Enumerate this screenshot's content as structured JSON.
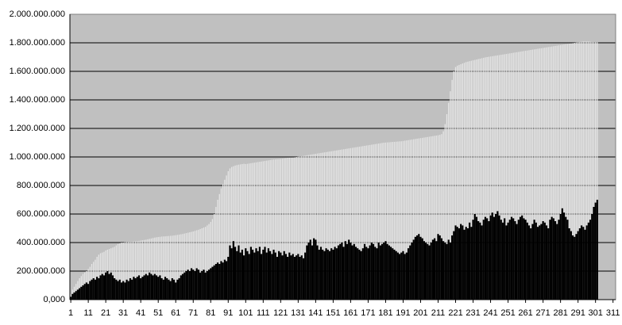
{
  "chart_data": {
    "type": "bar",
    "x": [
      1,
      2,
      3,
      4,
      5,
      6,
      7,
      8,
      9,
      10,
      11,
      12,
      13,
      14,
      15,
      16,
      17,
      18,
      19,
      20,
      21,
      22,
      23,
      24,
      25,
      26,
      27,
      28,
      29,
      30,
      31,
      32,
      33,
      34,
      35,
      36,
      37,
      38,
      39,
      40,
      41,
      42,
      43,
      44,
      45,
      46,
      47,
      48,
      49,
      50,
      51,
      52,
      53,
      54,
      55,
      56,
      57,
      58,
      59,
      60,
      61,
      62,
      63,
      64,
      65,
      66,
      67,
      68,
      69,
      70,
      71,
      72,
      73,
      74,
      75,
      76,
      77,
      78,
      79,
      80,
      81,
      82,
      83,
      84,
      85,
      86,
      87,
      88,
      89,
      90,
      91,
      92,
      93,
      94,
      95,
      96,
      97,
      98,
      99,
      100,
      101,
      102,
      103,
      104,
      105,
      106,
      107,
      108,
      109,
      110,
      111,
      112,
      113,
      114,
      115,
      116,
      117,
      118,
      119,
      120,
      121,
      122,
      123,
      124,
      125,
      126,
      127,
      128,
      129,
      130,
      131,
      132,
      133,
      134,
      135,
      136,
      137,
      138,
      139,
      140,
      141,
      142,
      143,
      144,
      145,
      146,
      147,
      148,
      149,
      150,
      151,
      152,
      153,
      154,
      155,
      156,
      157,
      158,
      159,
      160,
      161,
      162,
      163,
      164,
      165,
      166,
      167,
      168,
      169,
      170,
      171,
      172,
      173,
      174,
      175,
      176,
      177,
      178,
      179,
      180,
      181,
      182,
      183,
      184,
      185,
      186,
      187,
      188,
      189,
      190,
      191,
      192,
      193,
      194,
      195,
      196,
      197,
      198,
      199,
      200,
      201,
      202,
      203,
      204,
      205,
      206,
      207,
      208,
      209,
      210,
      211,
      212,
      213,
      214,
      215,
      216,
      217,
      218,
      219,
      220,
      221,
      222,
      223,
      224,
      225,
      226,
      227,
      228,
      229,
      230,
      231,
      232,
      233,
      234,
      235,
      236,
      237,
      238,
      239,
      240,
      241,
      242,
      243,
      244,
      245,
      246,
      247,
      248,
      249,
      250,
      251,
      252,
      253,
      254,
      255,
      256,
      257,
      258,
      259,
      260,
      261,
      262,
      263,
      264,
      265,
      266,
      267,
      268,
      269,
      270,
      271,
      272,
      273,
      274,
      275,
      276,
      277,
      278,
      279,
      280,
      281,
      282,
      283,
      284,
      285,
      286,
      287,
      288,
      289,
      290,
      291,
      292,
      293,
      294,
      295,
      296,
      297,
      298,
      299,
      300,
      301,
      302
    ],
    "series": [
      {
        "color": "#e6e6e6",
        "values": [
          40000000,
          70000000,
          90000000,
          110000000,
          130000000,
          150000000,
          165000000,
          180000000,
          190000000,
          200000000,
          215000000,
          230000000,
          250000000,
          265000000,
          280000000,
          300000000,
          315000000,
          325000000,
          330000000,
          335000000,
          345000000,
          350000000,
          355000000,
          360000000,
          365000000,
          370000000,
          380000000,
          390000000,
          395000000,
          400000000,
          400000000,
          402000000,
          404000000,
          405000000,
          406000000,
          407000000,
          408000000,
          409000000,
          410000000,
          412000000,
          414000000,
          416000000,
          418000000,
          420000000,
          423000000,
          426000000,
          429000000,
          432000000,
          435000000,
          437000000,
          439000000,
          440000000,
          442000000,
          443000000,
          444000000,
          445000000,
          446000000,
          447000000,
          448000000,
          450000000,
          452000000,
          454000000,
          456000000,
          458000000,
          460000000,
          463000000,
          466000000,
          469000000,
          472000000,
          475000000,
          478000000,
          482000000,
          486000000,
          490000000,
          495000000,
          500000000,
          505000000,
          510000000,
          520000000,
          530000000,
          545000000,
          565000000,
          600000000,
          650000000,
          700000000,
          740000000,
          780000000,
          810000000,
          840000000,
          870000000,
          900000000,
          920000000,
          930000000,
          935000000,
          940000000,
          943000000,
          946000000,
          948000000,
          950000000,
          952000000,
          950000000,
          952000000,
          954000000,
          956000000,
          958000000,
          960000000,
          962000000,
          964000000,
          966000000,
          968000000,
          970000000,
          972000000,
          974000000,
          976000000,
          978000000,
          980000000,
          982000000,
          983000000,
          984000000,
          985000000,
          986000000,
          988000000,
          990000000,
          992000000,
          994000000,
          995000000,
          996000000,
          997000000,
          998000000,
          1000000000,
          1002000000,
          1004000000,
          1006000000,
          1008000000,
          1010000000,
          1012000000,
          1014000000,
          1016000000,
          1018000000,
          1020000000,
          1022000000,
          1024000000,
          1026000000,
          1028000000,
          1030000000,
          1032000000,
          1034000000,
          1036000000,
          1038000000,
          1040000000,
          1042000000,
          1044000000,
          1046000000,
          1048000000,
          1050000000,
          1052000000,
          1054000000,
          1056000000,
          1058000000,
          1060000000,
          1062000000,
          1064000000,
          1066000000,
          1068000000,
          1070000000,
          1072000000,
          1074000000,
          1076000000,
          1078000000,
          1080000000,
          1082000000,
          1084000000,
          1086000000,
          1088000000,
          1090000000,
          1092000000,
          1094000000,
          1096000000,
          1098000000,
          1100000000,
          1101000000,
          1102000000,
          1103000000,
          1104000000,
          1105000000,
          1106000000,
          1107000000,
          1108000000,
          1109000000,
          1110000000,
          1112000000,
          1114000000,
          1116000000,
          1118000000,
          1120000000,
          1122000000,
          1124000000,
          1126000000,
          1128000000,
          1130000000,
          1132000000,
          1134000000,
          1136000000,
          1138000000,
          1140000000,
          1142000000,
          1144000000,
          1146000000,
          1148000000,
          1150000000,
          1152000000,
          1155000000,
          1160000000,
          1180000000,
          1230000000,
          1300000000,
          1380000000,
          1460000000,
          1540000000,
          1600000000,
          1630000000,
          1640000000,
          1645000000,
          1650000000,
          1655000000,
          1660000000,
          1665000000,
          1668000000,
          1671000000,
          1674000000,
          1677000000,
          1680000000,
          1683000000,
          1686000000,
          1689000000,
          1692000000,
          1695000000,
          1698000000,
          1700000000,
          1702000000,
          1704000000,
          1706000000,
          1708000000,
          1710000000,
          1712000000,
          1714000000,
          1716000000,
          1718000000,
          1720000000,
          1722000000,
          1724000000,
          1726000000,
          1728000000,
          1730000000,
          1732000000,
          1734000000,
          1736000000,
          1738000000,
          1740000000,
          1742000000,
          1744000000,
          1746000000,
          1748000000,
          1750000000,
          1752000000,
          1754000000,
          1756000000,
          1758000000,
          1760000000,
          1762000000,
          1764000000,
          1766000000,
          1768000000,
          1770000000,
          1772000000,
          1774000000,
          1776000000,
          1778000000,
          1780000000,
          1782000000,
          1784000000,
          1786000000,
          1788000000,
          1790000000,
          1792000000,
          1794000000,
          1796000000,
          1798000000,
          1800000000,
          1802000000,
          1804000000,
          1806000000,
          1808000000,
          1810000000,
          1810000000,
          1810000000,
          1810000000,
          1808000000,
          1806000000,
          1805000000,
          1804000000,
          1803000000
        ]
      },
      {
        "color": "#000000",
        "values": [
          20000000,
          40000000,
          50000000,
          60000000,
          70000000,
          80000000,
          90000000,
          100000000,
          110000000,
          120000000,
          110000000,
          130000000,
          140000000,
          150000000,
          140000000,
          160000000,
          150000000,
          170000000,
          180000000,
          170000000,
          190000000,
          200000000,
          180000000,
          190000000,
          170000000,
          150000000,
          140000000,
          130000000,
          140000000,
          120000000,
          130000000,
          120000000,
          140000000,
          130000000,
          150000000,
          140000000,
          160000000,
          150000000,
          160000000,
          170000000,
          150000000,
          160000000,
          170000000,
          180000000,
          170000000,
          190000000,
          180000000,
          170000000,
          180000000,
          170000000,
          160000000,
          170000000,
          150000000,
          140000000,
          160000000,
          150000000,
          140000000,
          130000000,
          150000000,
          140000000,
          120000000,
          140000000,
          150000000,
          170000000,
          180000000,
          190000000,
          200000000,
          210000000,
          200000000,
          220000000,
          210000000,
          200000000,
          220000000,
          210000000,
          190000000,
          200000000,
          210000000,
          190000000,
          200000000,
          210000000,
          220000000,
          230000000,
          240000000,
          250000000,
          260000000,
          250000000,
          270000000,
          260000000,
          280000000,
          270000000,
          300000000,
          380000000,
          360000000,
          410000000,
          370000000,
          340000000,
          380000000,
          330000000,
          350000000,
          310000000,
          360000000,
          340000000,
          320000000,
          370000000,
          350000000,
          330000000,
          360000000,
          340000000,
          370000000,
          320000000,
          350000000,
          370000000,
          330000000,
          360000000,
          340000000,
          320000000,
          350000000,
          330000000,
          300000000,
          340000000,
          330000000,
          310000000,
          340000000,
          320000000,
          300000000,
          330000000,
          310000000,
          320000000,
          300000000,
          310000000,
          320000000,
          300000000,
          310000000,
          290000000,
          330000000,
          380000000,
          400000000,
          420000000,
          380000000,
          430000000,
          420000000,
          380000000,
          350000000,
          370000000,
          350000000,
          340000000,
          360000000,
          350000000,
          340000000,
          360000000,
          350000000,
          370000000,
          360000000,
          380000000,
          390000000,
          400000000,
          370000000,
          410000000,
          390000000,
          420000000,
          400000000,
          380000000,
          390000000,
          370000000,
          360000000,
          350000000,
          340000000,
          360000000,
          390000000,
          370000000,
          360000000,
          380000000,
          400000000,
          390000000,
          370000000,
          360000000,
          400000000,
          380000000,
          390000000,
          400000000,
          410000000,
          390000000,
          380000000,
          370000000,
          360000000,
          350000000,
          340000000,
          330000000,
          320000000,
          330000000,
          340000000,
          320000000,
          330000000,
          360000000,
          380000000,
          400000000,
          420000000,
          440000000,
          450000000,
          460000000,
          440000000,
          430000000,
          410000000,
          400000000,
          390000000,
          380000000,
          400000000,
          420000000,
          430000000,
          410000000,
          460000000,
          450000000,
          430000000,
          410000000,
          400000000,
          390000000,
          420000000,
          400000000,
          450000000,
          480000000,
          520000000,
          510000000,
          500000000,
          530000000,
          520000000,
          490000000,
          510000000,
          500000000,
          540000000,
          510000000,
          560000000,
          600000000,
          580000000,
          550000000,
          540000000,
          520000000,
          560000000,
          580000000,
          570000000,
          550000000,
          590000000,
          610000000,
          580000000,
          600000000,
          620000000,
          590000000,
          560000000,
          540000000,
          570000000,
          520000000,
          540000000,
          560000000,
          580000000,
          570000000,
          550000000,
          530000000,
          560000000,
          580000000,
          590000000,
          570000000,
          560000000,
          540000000,
          520000000,
          500000000,
          530000000,
          560000000,
          540000000,
          510000000,
          520000000,
          530000000,
          550000000,
          540000000,
          520000000,
          500000000,
          560000000,
          580000000,
          570000000,
          550000000,
          530000000,
          560000000,
          600000000,
          640000000,
          610000000,
          580000000,
          560000000,
          500000000,
          480000000,
          450000000,
          440000000,
          460000000,
          480000000,
          500000000,
          520000000,
          510000000,
          490000000,
          520000000,
          540000000,
          560000000,
          600000000,
          650000000,
          680000000,
          700000000
        ]
      }
    ],
    "xlim": [
      0.5,
      312.5
    ],
    "xticks": [
      1,
      11,
      21,
      31,
      41,
      51,
      61,
      71,
      81,
      91,
      101,
      111,
      121,
      131,
      141,
      151,
      161,
      171,
      181,
      191,
      201,
      211,
      221,
      231,
      241,
      251,
      261,
      271,
      281,
      291,
      301,
      311
    ],
    "ylim": [
      0,
      2000000000
    ],
    "yticks": [
      {
        "value": 0,
        "label": "0,000"
      },
      {
        "value": 200000000,
        "label": "200.000.000"
      },
      {
        "value": 400000000,
        "label": "400.000.000"
      },
      {
        "value": 600000000,
        "label": "600.000.000"
      },
      {
        "value": 800000000,
        "label": "800.000.000"
      },
      {
        "value": 1000000000,
        "label": "1.000.000.000"
      },
      {
        "value": 1200000000,
        "label": "1.200.000.000"
      },
      {
        "value": 1400000000,
        "label": "1.400.000.000"
      },
      {
        "value": 1600000000,
        "label": "1.600.000.000"
      },
      {
        "value": 1800000000,
        "label": "1.800.000.000"
      },
      {
        "value": 2000000000,
        "label": "2.000.000.000"
      }
    ],
    "grid": true
  }
}
